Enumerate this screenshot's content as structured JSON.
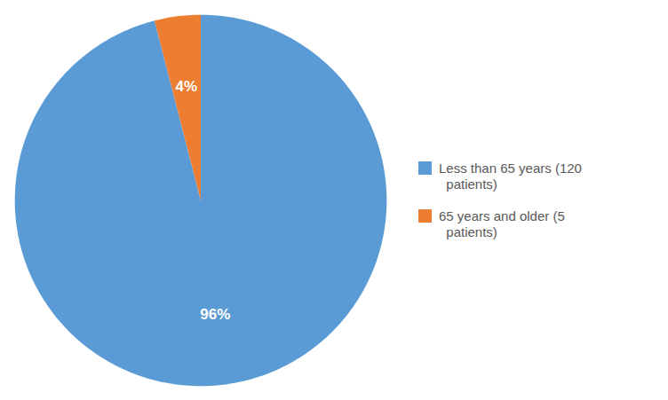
{
  "chart_data": {
    "type": "pie",
    "categories": [
      "Less than 65 years (120\n  patients)",
      "65 years and older (5\n  patients)"
    ],
    "values": [
      96,
      4
    ],
    "value_labels": [
      "96%",
      "4%"
    ],
    "colors": [
      "#5B9BD5",
      "#ED7D31"
    ],
    "data_labels": true,
    "legend": "right"
  }
}
